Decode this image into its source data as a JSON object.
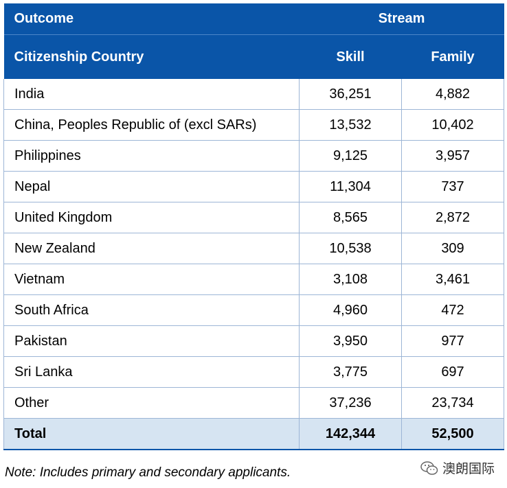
{
  "header": {
    "outcome": "Outcome",
    "stream": "Stream",
    "country": "Citizenship Country",
    "skill": "Skill",
    "family": "Family"
  },
  "rows": [
    {
      "country": "India",
      "skill": "36,251",
      "family": "4,882"
    },
    {
      "country": "China, Peoples Republic of (excl SARs)",
      "skill": "13,532",
      "family": "10,402"
    },
    {
      "country": "Philippines",
      "skill": "9,125",
      "family": "3,957"
    },
    {
      "country": "Nepal",
      "skill": "11,304",
      "family": "737"
    },
    {
      "country": "United Kingdom",
      "skill": "8,565",
      "family": "2,872"
    },
    {
      "country": "New Zealand",
      "skill": "10,538",
      "family": "309"
    },
    {
      "country": "Vietnam",
      "skill": "3,108",
      "family": "3,461"
    },
    {
      "country": "South Africa",
      "skill": "4,960",
      "family": "472"
    },
    {
      "country": "Pakistan",
      "skill": "3,950",
      "family": "977"
    },
    {
      "country": "Sri Lanka",
      "skill": "3,775",
      "family": "697"
    },
    {
      "country": "Other",
      "skill": "37,236",
      "family": "23,734"
    }
  ],
  "total": {
    "label": "Total",
    "skill": "142,344",
    "family": "52,500"
  },
  "note": "Note: Includes primary and secondary applicants.",
  "watermark": {
    "text": "澳朗国际",
    "icon": "wechat-icon"
  },
  "colors": {
    "header_bg": "#0a55a8",
    "total_bg": "#d6e4f2",
    "border": "#9cb5d6"
  }
}
